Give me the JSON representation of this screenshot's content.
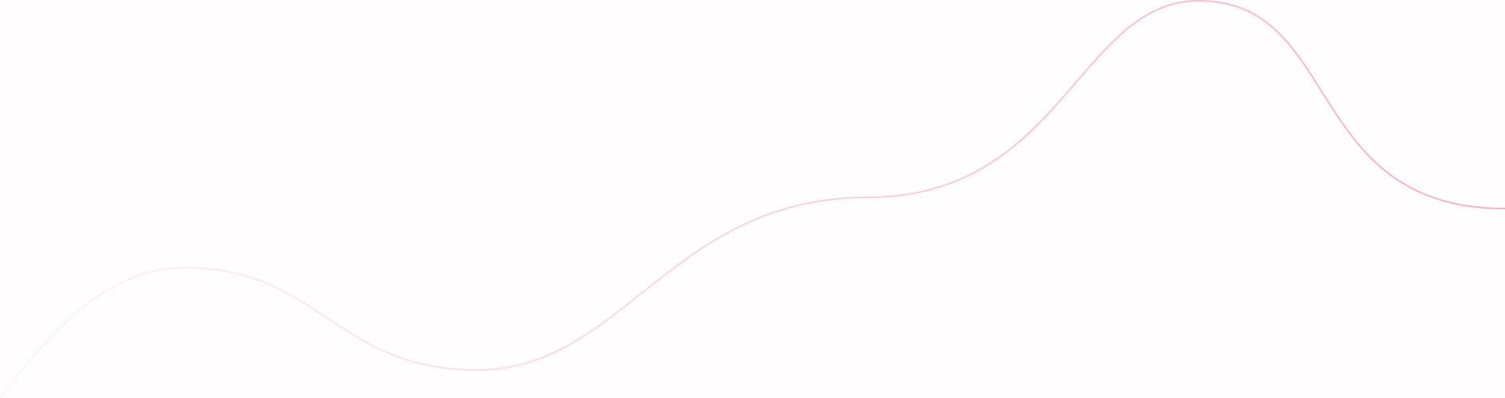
{
  "background": {
    "color": "#fffdfe"
  },
  "wave": {
    "stroke_start_color": "#fff4f6",
    "stroke_end_color": "#f9b1c6"
  }
}
